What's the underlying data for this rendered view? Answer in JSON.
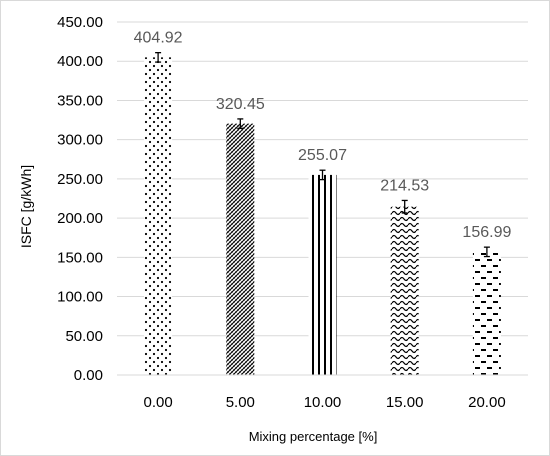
{
  "chart_data": {
    "type": "bar",
    "title": "",
    "xlabel": "Mixing percentage [%]",
    "ylabel": "ISFC [g/kWh]",
    "categories": [
      "0.00",
      "5.00",
      "10.00",
      "15.00",
      "20.00"
    ],
    "values": [
      404.92,
      320.45,
      255.07,
      214.53,
      156.99
    ],
    "data_labels": [
      "404.92",
      "320.45",
      "255.07",
      "214.53",
      "156.99"
    ],
    "error": [
      6,
      6,
      6,
      8,
      6
    ],
    "ylim": [
      0,
      450
    ],
    "yticks": [
      "0.00",
      "50.00",
      "100.00",
      "150.00",
      "200.00",
      "250.00",
      "300.00",
      "350.00",
      "400.00",
      "450.00"
    ],
    "grid": "horizontal",
    "legend": "none",
    "patterns": [
      "dots",
      "diagonal-dense",
      "vertical-lines",
      "waves",
      "dashes"
    ],
    "colors": {
      "bar": "#000000",
      "grid": "#d9d9d9",
      "label": "#595959"
    }
  }
}
